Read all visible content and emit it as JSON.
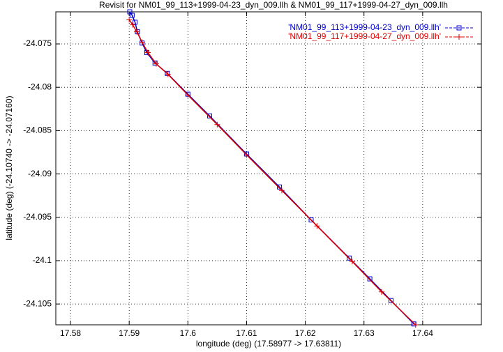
{
  "chart_data": {
    "type": "line",
    "title": "Revisit for NM01_99_113+1999-04-23_dyn_009.llh & NM01_99_117+1999-04-27_dyn_009.llh",
    "xlabel": "longitude (deg) (17.58977 -> 17.63811)",
    "ylabel": "latitude (deg) (-24.10740 -> -24.07160)",
    "xlim": [
      17.5775,
      17.65
    ],
    "xticks": [
      17.58,
      17.59,
      17.6,
      17.61,
      17.62,
      17.63,
      17.64
    ],
    "ylim": [
      -24.1074,
      -24.0713
    ],
    "yticks": [
      -24.075,
      -24.08,
      -24.085,
      -24.09,
      -24.095,
      -24.1,
      -24.105
    ],
    "grid": true,
    "legend": "top-right",
    "series": [
      {
        "name": "'NM01_99_113+1999-04-23_dyn_009.llh'",
        "color": "#0000cc",
        "marker": "square",
        "x": [
          17.5901,
          17.5905,
          17.591,
          17.5914,
          17.5922,
          17.593,
          17.5944,
          17.5965,
          17.6,
          17.6037,
          17.61,
          17.6156,
          17.621,
          17.6275,
          17.631,
          17.6346,
          17.6385
        ],
        "values": [
          -24.0713,
          -24.0717,
          -24.0725,
          -24.0736,
          -24.0749,
          -24.076,
          -24.0772,
          -24.0784,
          -24.0808,
          -24.0833,
          -24.0877,
          -24.0915,
          -24.0953,
          -24.0997,
          -24.1021,
          -24.1046,
          -24.1073
        ]
      },
      {
        "name": "'NM01_99_117+1999-04-27_dyn_009.llh'",
        "color": "#dd0000",
        "marker": "plus",
        "x": [
          17.59,
          17.5906,
          17.5913,
          17.5922,
          17.5932,
          17.5946,
          17.5966,
          17.6,
          17.605,
          17.61,
          17.616,
          17.622,
          17.628,
          17.633,
          17.6388
        ],
        "values": [
          -24.0722,
          -24.0728,
          -24.0736,
          -24.0748,
          -24.076,
          -24.0773,
          -24.0785,
          -24.0809,
          -24.0843,
          -24.0878,
          -24.0919,
          -24.096,
          -24.1001,
          -24.1036,
          -24.1074
        ]
      }
    ]
  }
}
